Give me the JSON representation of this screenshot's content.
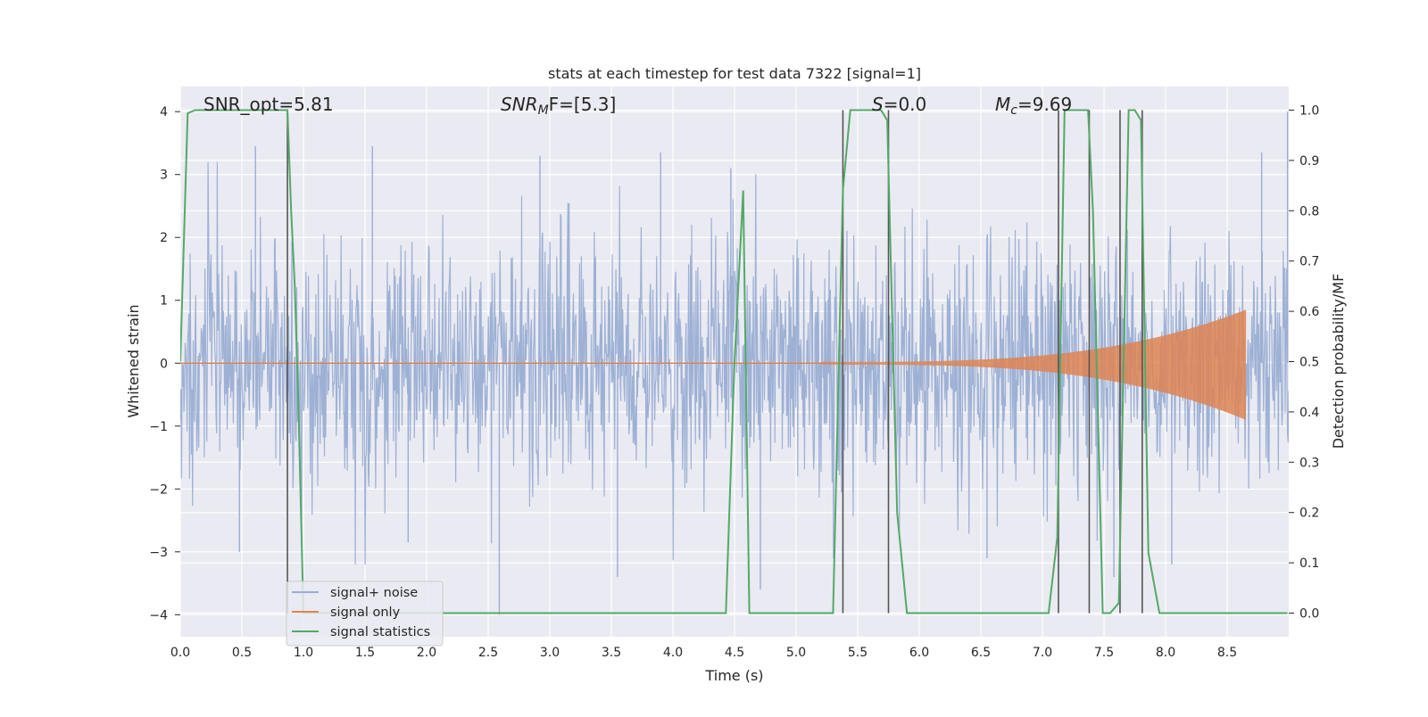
{
  "chart_data": {
    "type": "line",
    "title": "stats at each timestep for test data 7322 [signal=1]",
    "xlabel": "Time (s)",
    "ylabel": "Whitened strain",
    "y2label": "Detection probability/MF",
    "xlim": [
      0.0,
      9.0
    ],
    "ylim": [
      -4.35,
      4.4
    ],
    "y2lim": [
      -0.047,
      1.047
    ],
    "x_ticks": [
      "0.0",
      "0.5",
      "1.0",
      "1.5",
      "2.0",
      "2.5",
      "3.0",
      "3.5",
      "4.0",
      "4.5",
      "5.0",
      "5.5",
      "6.0",
      "6.5",
      "7.0",
      "7.5",
      "8.0",
      "8.5"
    ],
    "x_tick_values": [
      0.0,
      0.5,
      1.0,
      1.5,
      2.0,
      2.5,
      3.0,
      3.5,
      4.0,
      4.5,
      5.0,
      5.5,
      6.0,
      6.5,
      7.0,
      7.5,
      8.0,
      8.5
    ],
    "y_ticks": [
      "4",
      "3",
      "2",
      "1",
      "0",
      "−1",
      "−2",
      "−3",
      "−4"
    ],
    "y_tick_values": [
      4,
      3,
      2,
      1,
      0,
      -1,
      -2,
      -3,
      -4
    ],
    "y2_ticks": [
      "1.0",
      "0.9",
      "0.8",
      "0.7",
      "0.6",
      "0.5",
      "0.4",
      "0.3",
      "0.2",
      "0.1",
      "0.0"
    ],
    "y2_tick_values": [
      1.0,
      0.9,
      0.8,
      0.7,
      0.6,
      0.5,
      0.4,
      0.3,
      0.2,
      0.1,
      0.0
    ],
    "grid": true,
    "legend_position": "lower-left",
    "annotations": {
      "snr_opt": "SNR_opt=5.81",
      "snr_mf": "SNR",
      "snr_mf_sub": "M",
      "snr_mf_rest": "F=[5.3]",
      "s_stat": "S",
      "s_stat_rest": "=0.0",
      "mc": "M",
      "mc_sub": "c",
      "mc_rest": "=9.69"
    },
    "series": [
      {
        "name": "signal+ noise",
        "color": "#9aaed3",
        "kind": "noise",
        "sigma": 1.0,
        "x_start": 0.0,
        "x_end": 9.0,
        "samples": 1800,
        "spikes": [
          [
            0.61,
            3.45
          ],
          [
            1.56,
            3.45
          ],
          [
            2.92,
            3.3
          ],
          [
            3.9,
            3.35
          ],
          [
            4.47,
            3.1
          ],
          [
            8.99,
            4.0
          ],
          [
            8.78,
            3.35
          ],
          [
            2.59,
            -4.0
          ],
          [
            4.71,
            -3.6
          ],
          [
            3.55,
            -3.4
          ],
          [
            0.48,
            -3.0
          ],
          [
            7.58,
            -3.4
          ],
          [
            8.05,
            -3.2
          ],
          [
            6.55,
            -3.1
          ],
          [
            1.85,
            -2.85
          ]
        ]
      },
      {
        "name": "signal only",
        "color": "#dd8452",
        "kind": "chirp",
        "x_start": 5.2,
        "x_end": 8.65,
        "amp_end": 0.85,
        "amp_end_low": -0.9
      },
      {
        "name": "signal statistics",
        "color": "#55a868",
        "kind": "probability",
        "x": [
          0.0,
          0.06,
          0.12,
          0.87,
          0.9,
          0.93,
          0.96,
          1.0,
          4.43,
          4.5,
          4.57,
          4.62,
          5.3,
          5.38,
          5.44,
          5.69,
          5.74,
          5.82,
          5.9,
          6.0,
          7.05,
          7.12,
          7.18,
          7.37,
          7.41,
          7.44,
          7.49,
          7.55,
          7.62,
          7.7,
          7.75,
          7.8,
          7.86,
          7.95,
          8.99
        ],
        "y": [
          0.5,
          0.994,
          1.0,
          1.0,
          0.8,
          0.65,
          0.4,
          0.0,
          0.0,
          0.5,
          0.84,
          0.0,
          0.0,
          0.84,
          1.0,
          1.0,
          0.98,
          0.2,
          0.0,
          0.0,
          0.0,
          0.15,
          1.0,
          1.0,
          0.8,
          0.5,
          0.0,
          0.0,
          0.02,
          1.0,
          1.0,
          0.98,
          0.12,
          0.0,
          0.0
        ]
      }
    ],
    "vlines": [
      0.87,
      5.38,
      5.75,
      7.13,
      7.38,
      7.63,
      7.81
    ],
    "vline_color": "#555555"
  }
}
